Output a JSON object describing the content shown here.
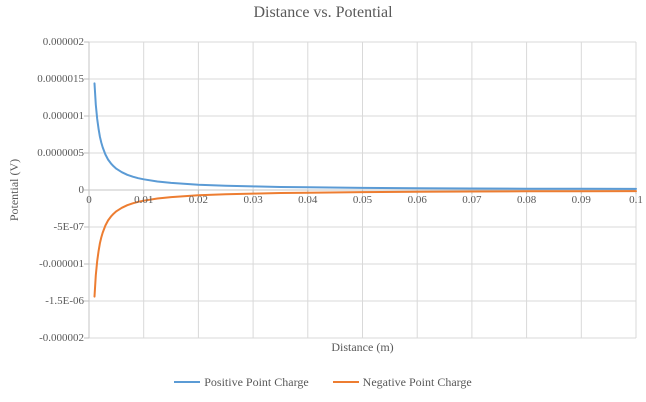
{
  "title": "Distance vs. Potential",
  "colors": {
    "text": "#595959",
    "gridline": "#D9D9D9",
    "axis": "#C6C6C6",
    "tick": "#BFBFBF",
    "background": "#FFFFFF",
    "positive_series": "#5B9BD5",
    "negative_series": "#ED7D31"
  },
  "chart_data": {
    "type": "line",
    "title": "Distance vs. Potential",
    "xlabel": "Distance (m)",
    "ylabel": "Potential (V)",
    "xlim": [
      0,
      0.1
    ],
    "ylim": [
      -2e-06,
      2e-06
    ],
    "grid": true,
    "legend_position": "bottom",
    "x_ticks": [
      {
        "value": 0,
        "label": "0"
      },
      {
        "value": 0.01,
        "label": "0.01"
      },
      {
        "value": 0.02,
        "label": "0.02"
      },
      {
        "value": 0.03,
        "label": "0.03"
      },
      {
        "value": 0.04,
        "label": "0.04"
      },
      {
        "value": 0.05,
        "label": "0.05"
      },
      {
        "value": 0.06,
        "label": "0.06"
      },
      {
        "value": 0.07,
        "label": "0.07"
      },
      {
        "value": 0.08,
        "label": "0.08"
      },
      {
        "value": 0.09,
        "label": "0.09"
      },
      {
        "value": 0.1,
        "label": "0.1"
      }
    ],
    "y_ticks": [
      {
        "value": 2e-06,
        "label": "0.000002"
      },
      {
        "value": 1.5e-06,
        "label": "0.0000015"
      },
      {
        "value": 1e-06,
        "label": "0.000001"
      },
      {
        "value": 5e-07,
        "label": "0.0000005"
      },
      {
        "value": 0,
        "label": "0"
      },
      {
        "value": -5e-07,
        "label": "-5E-07"
      },
      {
        "value": -1e-06,
        "label": "-0.000001"
      },
      {
        "value": -1.5e-06,
        "label": "-1.5E-06"
      },
      {
        "value": -2e-06,
        "label": "-0.000002"
      }
    ],
    "x": [
      0.001,
      0.00125,
      0.0015,
      0.00175,
      0.002,
      0.00225,
      0.0025,
      0.003,
      0.0035,
      0.004,
      0.0045,
      0.005,
      0.006,
      0.007,
      0.008,
      0.009,
      0.01,
      0.0125,
      0.015,
      0.02,
      0.025,
      0.03,
      0.035,
      0.04,
      0.05,
      0.06,
      0.07,
      0.08,
      0.09,
      0.1
    ],
    "series": [
      {
        "name": "Positive Point Charge",
        "color": "#5B9BD5",
        "values": [
          1.44e-06,
          1.152e-06,
          9.6e-07,
          8.23e-07,
          7.2e-07,
          6.4e-07,
          5.76e-07,
          4.8e-07,
          4.11e-07,
          3.6e-07,
          3.2e-07,
          2.88e-07,
          2.4e-07,
          2.06e-07,
          1.8e-07,
          1.6e-07,
          1.44e-07,
          1.152e-07,
          9.6e-08,
          7.2e-08,
          5.76e-08,
          4.8e-08,
          4.11e-08,
          3.6e-08,
          2.88e-08,
          2.4e-08,
          2.06e-08,
          1.8e-08,
          1.6e-08,
          1.44e-08
        ]
      },
      {
        "name": "Negative Point Charge",
        "color": "#ED7D31",
        "values": [
          -1.44e-06,
          -1.152e-06,
          -9.6e-07,
          -8.23e-07,
          -7.2e-07,
          -6.4e-07,
          -5.76e-07,
          -4.8e-07,
          -4.11e-07,
          -3.6e-07,
          -3.2e-07,
          -2.88e-07,
          -2.4e-07,
          -2.06e-07,
          -1.8e-07,
          -1.6e-07,
          -1.44e-07,
          -1.152e-07,
          -9.6e-08,
          -7.2e-08,
          -5.76e-08,
          -4.8e-08,
          -4.11e-08,
          -3.6e-08,
          -2.88e-08,
          -2.4e-08,
          -2.06e-08,
          -1.8e-08,
          -1.6e-08,
          -1.44e-08
        ]
      }
    ]
  }
}
